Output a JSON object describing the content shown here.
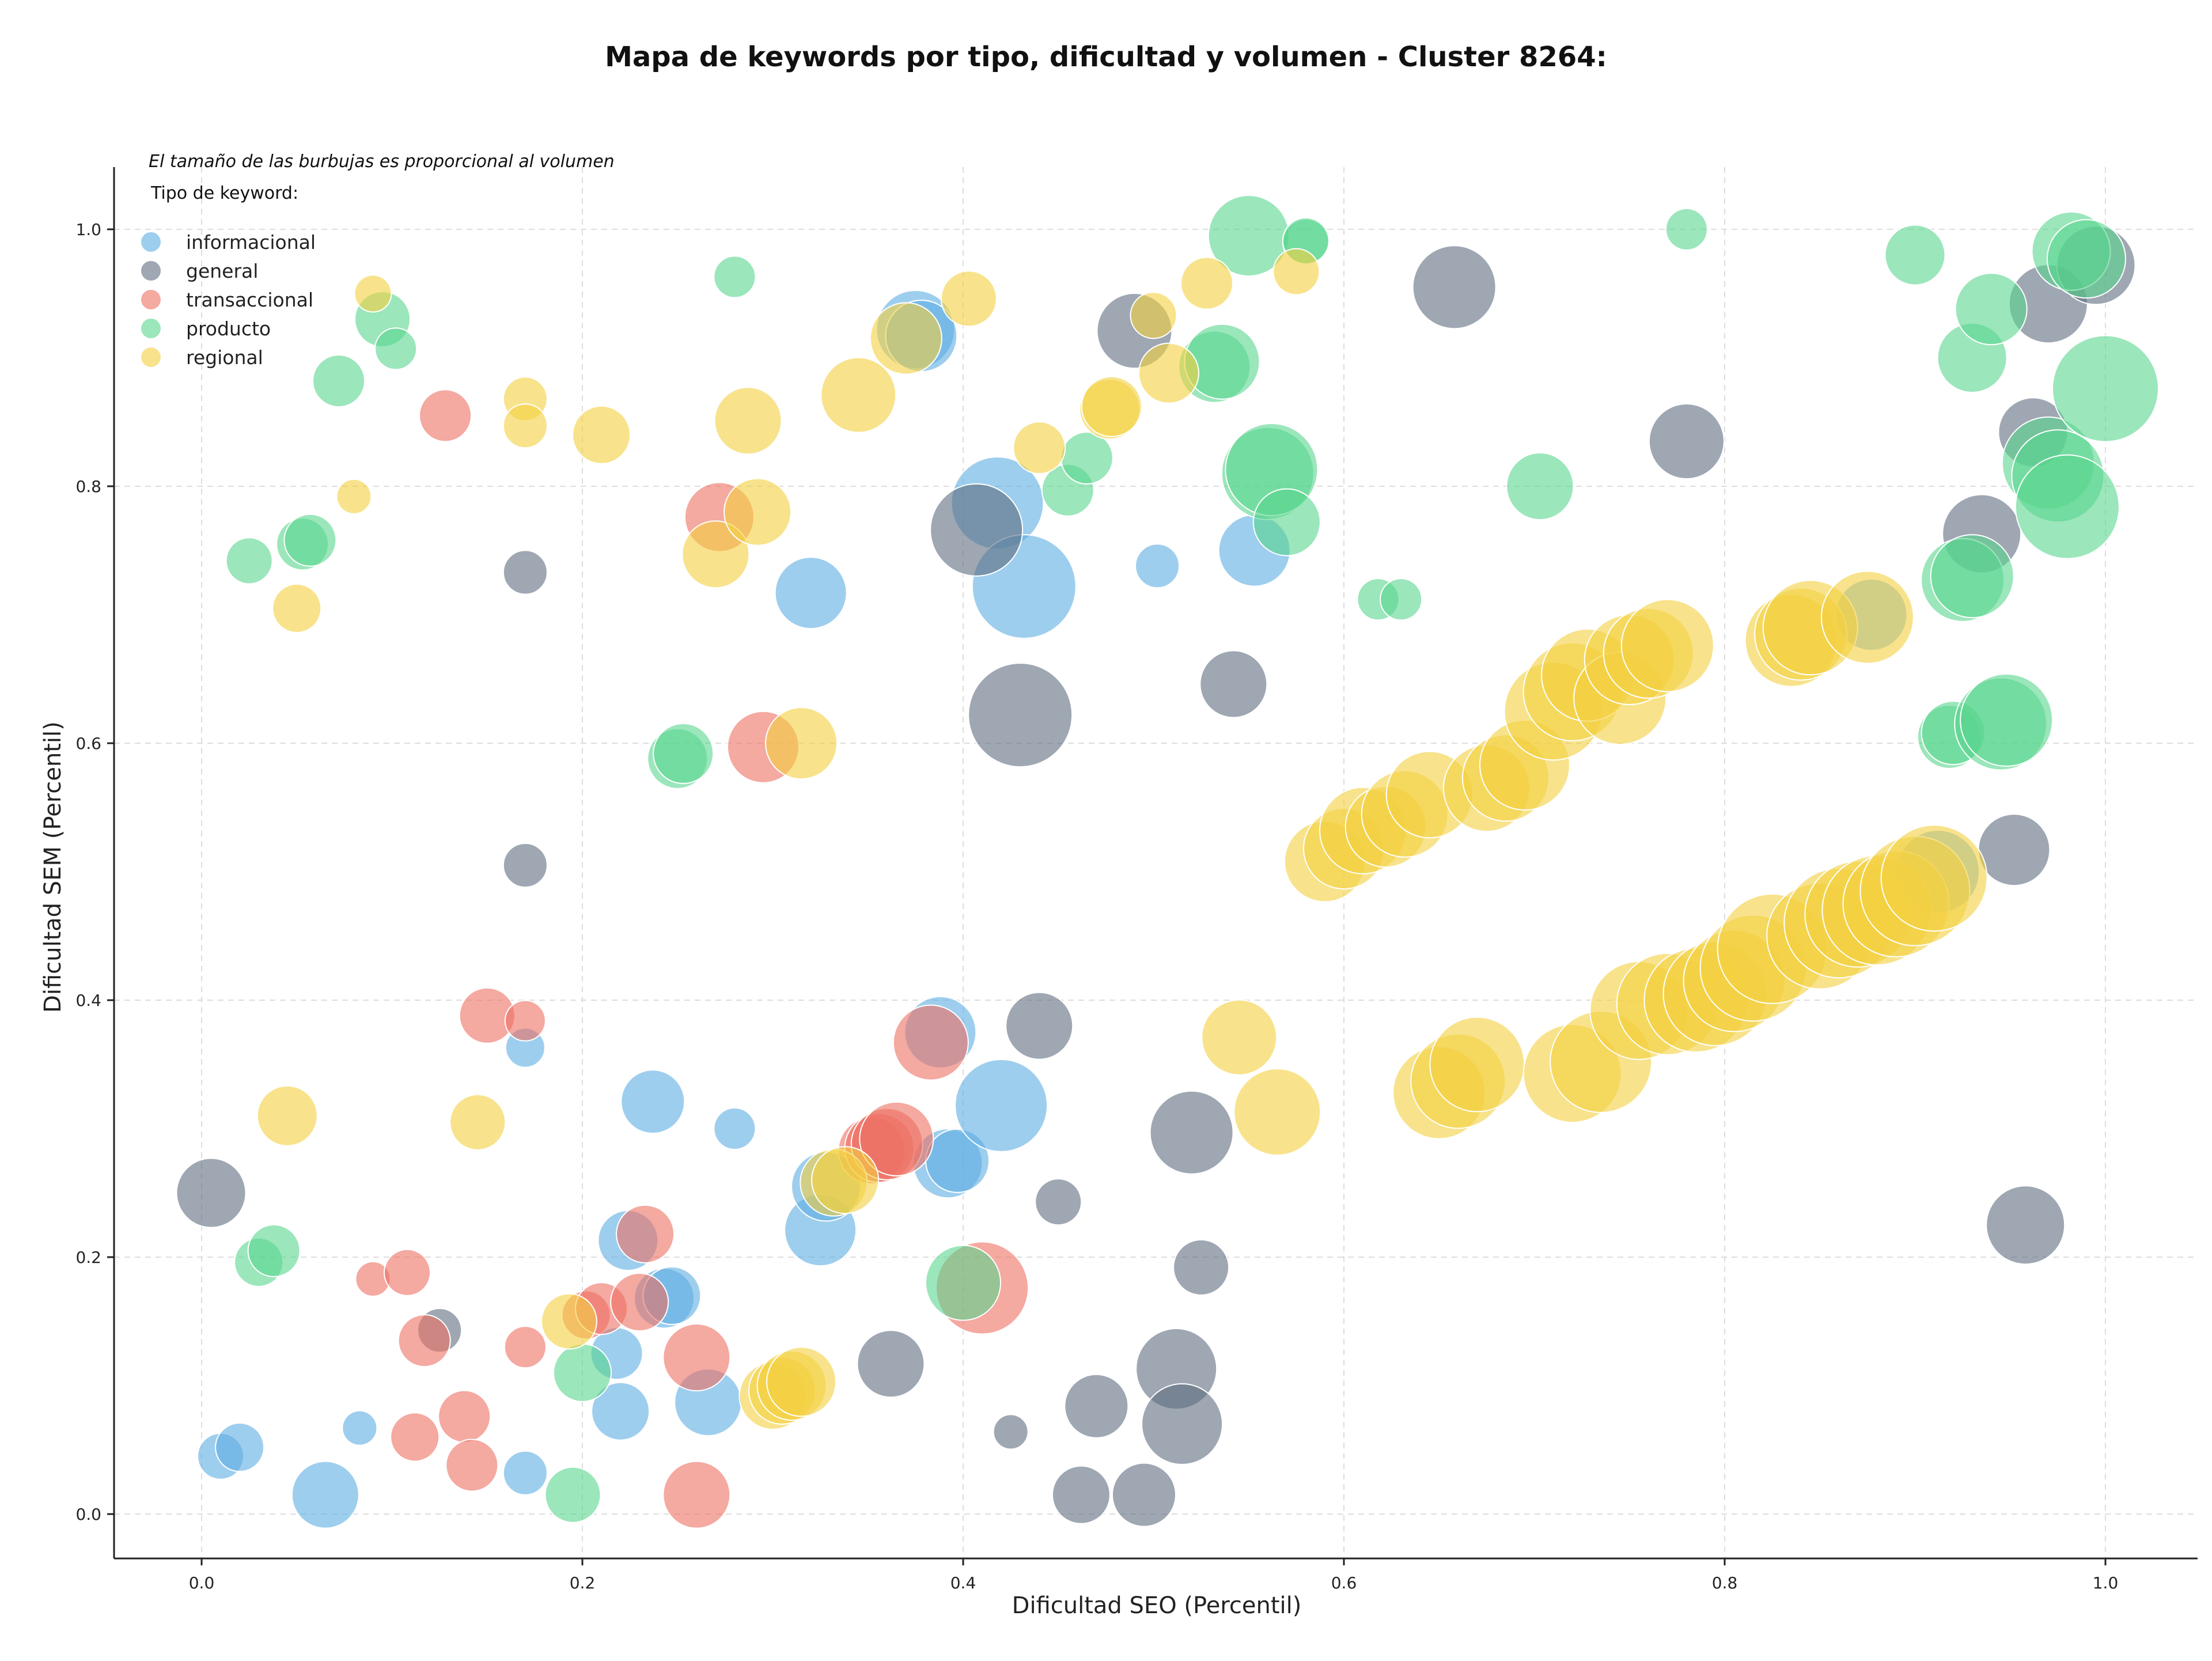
{
  "chart_data": {
    "type": "scatter",
    "title": "Mapa de keywords por tipo, dificultad y volumen - Cluster 8264:",
    "xlabel": "Dificultad SEO (Percentil)",
    "ylabel": "Dificultad SEM (Percentil)",
    "xlim": [
      -0.045,
      1.05
    ],
    "ylim": [
      -0.035,
      1.05
    ],
    "xticks": [
      "0.0",
      "0.2",
      "0.4",
      "0.6",
      "0.8",
      "1.0"
    ],
    "yticks": [
      "0.0",
      "0.2",
      "0.4",
      "0.6",
      "0.8",
      "1.0"
    ],
    "grid": true,
    "size_note": "El tamaño de las burbujas es proporcional al volumen",
    "legend_title": "Tipo de keyword:",
    "legend_position": "top-left",
    "series": [
      {
        "name": "informacional",
        "color": "#5dade2",
        "points": [
          [
            0.01,
            0.045,
            40
          ],
          [
            0.02,
            0.052,
            42
          ],
          [
            0.065,
            0.015,
            58
          ],
          [
            0.083,
            0.067,
            30
          ],
          [
            0.17,
            0.032,
            38
          ],
          [
            0.17,
            0.363,
            34
          ],
          [
            0.218,
            0.125,
            45
          ],
          [
            0.22,
            0.08,
            50
          ],
          [
            0.224,
            0.213,
            52
          ],
          [
            0.237,
            0.321,
            55
          ],
          [
            0.243,
            0.168,
            52
          ],
          [
            0.247,
            0.17,
            50
          ],
          [
            0.266,
            0.087,
            58
          ],
          [
            0.28,
            0.3,
            36
          ],
          [
            0.325,
            0.221,
            62
          ],
          [
            0.328,
            0.255,
            60
          ],
          [
            0.32,
            0.717,
            62
          ],
          [
            0.375,
            0.922,
            68
          ],
          [
            0.378,
            0.917,
            62
          ],
          [
            0.388,
            0.375,
            62
          ],
          [
            0.392,
            0.273,
            60
          ],
          [
            0.397,
            0.275,
            55
          ],
          [
            0.42,
            0.318,
            80
          ],
          [
            0.418,
            0.787,
            80
          ],
          [
            0.432,
            0.722,
            90
          ],
          [
            0.502,
            0.738,
            38
          ],
          [
            0.553,
            0.75,
            62
          ],
          [
            0.877,
            0.7,
            62
          ],
          [
            0.912,
            0.5,
            72
          ]
        ]
      },
      {
        "name": "general",
        "color": "#5d6d7e",
        "points": [
          [
            0.005,
            0.25,
            60
          ],
          [
            0.125,
            0.143,
            38
          ],
          [
            0.17,
            0.733,
            38
          ],
          [
            0.17,
            0.505,
            38
          ],
          [
            0.362,
            0.117,
            58
          ],
          [
            0.407,
            0.766,
            80
          ],
          [
            0.425,
            0.064,
            30
          ],
          [
            0.43,
            0.622,
            90
          ],
          [
            0.44,
            0.38,
            58
          ],
          [
            0.45,
            0.243,
            40
          ],
          [
            0.462,
            0.015,
            50
          ],
          [
            0.47,
            0.084,
            55
          ],
          [
            0.495,
            0.015,
            55
          ],
          [
            0.49,
            0.921,
            65
          ],
          [
            0.512,
            0.113,
            70
          ],
          [
            0.515,
            0.07,
            70
          ],
          [
            0.52,
            0.297,
            72
          ],
          [
            0.525,
            0.192,
            48
          ],
          [
            0.542,
            0.646,
            58
          ],
          [
            0.658,
            0.955,
            72
          ],
          [
            0.78,
            0.835,
            65
          ],
          [
            0.935,
            0.763,
            68
          ],
          [
            0.952,
            0.517,
            62
          ],
          [
            0.958,
            0.225,
            68
          ],
          [
            0.962,
            0.842,
            60
          ],
          [
            0.97,
            0.942,
            68
          ],
          [
            0.995,
            0.972,
            68
          ]
        ]
      },
      {
        "name": "transaccional",
        "color": "#ec7063",
        "points": [
          [
            0.09,
            0.183,
            30
          ],
          [
            0.108,
            0.188,
            40
          ],
          [
            0.112,
            0.06,
            42
          ],
          [
            0.117,
            0.135,
            45
          ],
          [
            0.128,
            0.855,
            45
          ],
          [
            0.138,
            0.076,
            45
          ],
          [
            0.142,
            0.038,
            45
          ],
          [
            0.15,
            0.388,
            48
          ],
          [
            0.17,
            0.384,
            35
          ],
          [
            0.17,
            0.13,
            36
          ],
          [
            0.202,
            0.155,
            42
          ],
          [
            0.21,
            0.16,
            45
          ],
          [
            0.23,
            0.165,
            50
          ],
          [
            0.233,
            0.218,
            50
          ],
          [
            0.26,
            0.122,
            58
          ],
          [
            0.26,
            0.015,
            58
          ],
          [
            0.272,
            0.776,
            60
          ],
          [
            0.295,
            0.597,
            62
          ],
          [
            0.352,
            0.283,
            58
          ],
          [
            0.356,
            0.285,
            60
          ],
          [
            0.36,
            0.288,
            62
          ],
          [
            0.365,
            0.292,
            64
          ],
          [
            0.383,
            0.367,
            65
          ],
          [
            0.41,
            0.176,
            80
          ]
        ]
      },
      {
        "name": "producto",
        "color": "#58d68d",
        "points": [
          [
            0.025,
            0.742,
            40
          ],
          [
            0.03,
            0.196,
            42
          ],
          [
            0.038,
            0.205,
            45
          ],
          [
            0.053,
            0.755,
            45
          ],
          [
            0.057,
            0.758,
            45
          ],
          [
            0.072,
            0.882,
            45
          ],
          [
            0.095,
            0.93,
            48
          ],
          [
            0.102,
            0.907,
            36
          ],
          [
            0.195,
            0.015,
            48
          ],
          [
            0.2,
            0.11,
            50
          ],
          [
            0.25,
            0.588,
            52
          ],
          [
            0.253,
            0.592,
            52
          ],
          [
            0.28,
            0.963,
            36
          ],
          [
            0.4,
            0.18,
            65
          ],
          [
            0.455,
            0.797,
            45
          ],
          [
            0.465,
            0.822,
            45
          ],
          [
            0.532,
            0.893,
            62
          ],
          [
            0.536,
            0.897,
            65
          ],
          [
            0.55,
            0.995,
            70
          ],
          [
            0.56,
            0.81,
            80
          ],
          [
            0.562,
            0.813,
            80
          ],
          [
            0.57,
            0.772,
            58
          ],
          [
            0.58,
            0.99,
            40
          ],
          [
            0.58,
            0.991,
            40
          ],
          [
            0.618,
            0.712,
            36
          ],
          [
            0.63,
            0.712,
            36
          ],
          [
            0.703,
            0.8,
            58
          ],
          [
            0.78,
            1.0,
            36
          ],
          [
            0.9,
            0.98,
            52
          ],
          [
            0.93,
            0.9,
            60
          ],
          [
            0.918,
            0.605,
            55
          ],
          [
            0.92,
            0.608,
            55
          ],
          [
            0.925,
            0.727,
            72
          ],
          [
            0.93,
            0.73,
            72
          ],
          [
            0.94,
            0.938,
            62
          ],
          [
            0.945,
            0.615,
            80
          ],
          [
            0.948,
            0.618,
            80
          ],
          [
            0.97,
            0.818,
            80
          ],
          [
            0.975,
            0.808,
            80
          ],
          [
            0.98,
            0.784,
            90
          ],
          [
            0.982,
            0.983,
            68
          ],
          [
            0.99,
            0.977,
            68
          ],
          [
            1.0,
            0.876,
            92
          ]
        ]
      },
      {
        "name": "regional",
        "color": "#f4d03f",
        "points": [
          [
            0.045,
            0.31,
            52
          ],
          [
            0.05,
            0.705,
            42
          ],
          [
            0.08,
            0.792,
            30
          ],
          [
            0.09,
            0.95,
            32
          ],
          [
            0.145,
            0.305,
            48
          ],
          [
            0.17,
            0.868,
            38
          ],
          [
            0.17,
            0.847,
            38
          ],
          [
            0.193,
            0.15,
            48
          ],
          [
            0.21,
            0.84,
            50
          ],
          [
            0.27,
            0.747,
            58
          ],
          [
            0.287,
            0.851,
            58
          ],
          [
            0.292,
            0.78,
            58
          ],
          [
            0.3,
            0.092,
            58
          ],
          [
            0.305,
            0.096,
            58
          ],
          [
            0.31,
            0.1,
            60
          ],
          [
            0.315,
            0.103,
            60
          ],
          [
            0.315,
            0.6,
            62
          ],
          [
            0.332,
            0.258,
            58
          ],
          [
            0.338,
            0.26,
            58
          ],
          [
            0.345,
            0.871,
            65
          ],
          [
            0.37,
            0.915,
            62
          ],
          [
            0.403,
            0.946,
            48
          ],
          [
            0.44,
            0.83,
            45
          ],
          [
            0.477,
            0.86,
            52
          ],
          [
            0.478,
            0.862,
            52
          ],
          [
            0.5,
            0.933,
            40
          ],
          [
            0.508,
            0.888,
            52
          ],
          [
            0.528,
            0.958,
            45
          ],
          [
            0.545,
            0.371,
            65
          ],
          [
            0.565,
            0.313,
            75
          ],
          [
            0.575,
            0.967,
            40
          ],
          [
            0.59,
            0.508,
            70
          ],
          [
            0.6,
            0.518,
            70
          ],
          [
            0.61,
            0.532,
            75
          ],
          [
            0.622,
            0.535,
            70
          ],
          [
            0.632,
            0.545,
            75
          ],
          [
            0.645,
            0.56,
            75
          ],
          [
            0.65,
            0.328,
            80
          ],
          [
            0.66,
            0.337,
            82
          ],
          [
            0.67,
            0.35,
            82
          ],
          [
            0.675,
            0.565,
            75
          ],
          [
            0.685,
            0.573,
            75
          ],
          [
            0.695,
            0.583,
            78
          ],
          [
            0.71,
            0.625,
            85
          ],
          [
            0.72,
            0.64,
            85
          ],
          [
            0.728,
            0.653,
            80
          ],
          [
            0.72,
            0.343,
            85
          ],
          [
            0.735,
            0.352,
            88
          ],
          [
            0.745,
            0.635,
            80
          ],
          [
            0.75,
            0.665,
            78
          ],
          [
            0.76,
            0.67,
            78
          ],
          [
            0.77,
            0.676,
            80
          ],
          [
            0.755,
            0.392,
            85
          ],
          [
            0.77,
            0.397,
            88
          ],
          [
            0.785,
            0.4,
            90
          ],
          [
            0.795,
            0.405,
            90
          ],
          [
            0.805,
            0.415,
            88
          ],
          [
            0.815,
            0.425,
            92
          ],
          [
            0.825,
            0.44,
            95
          ],
          [
            0.835,
            0.68,
            80
          ],
          [
            0.84,
            0.685,
            80
          ],
          [
            0.845,
            0.69,
            82
          ],
          [
            0.85,
            0.45,
            92
          ],
          [
            0.86,
            0.46,
            95
          ],
          [
            0.87,
            0.467,
            92
          ],
          [
            0.875,
            0.698,
            80
          ],
          [
            0.88,
            0.47,
            95
          ],
          [
            0.89,
            0.475,
            92
          ],
          [
            0.9,
            0.485,
            95
          ],
          [
            0.91,
            0.495,
            92
          ]
        ]
      }
    ]
  }
}
